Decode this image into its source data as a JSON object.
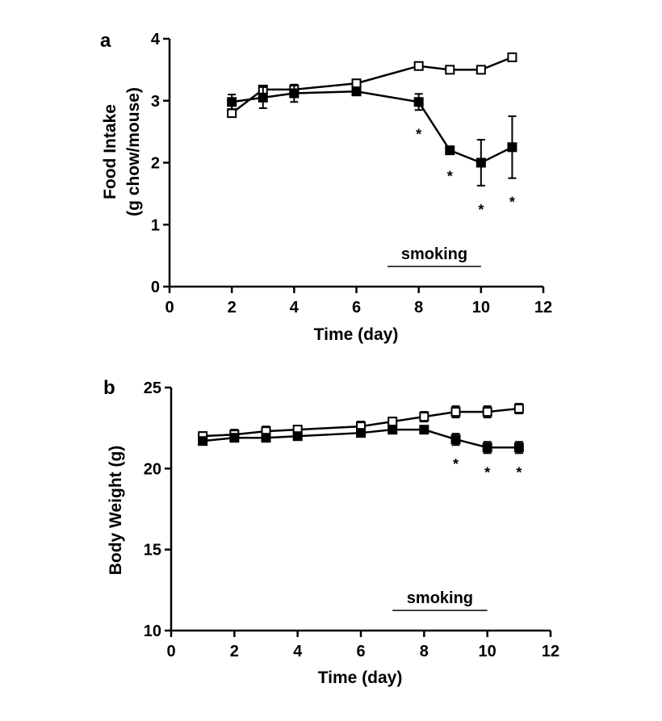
{
  "chart_data": [
    {
      "type": "line",
      "panel_label": "a",
      "xlabel": "Time (day)",
      "ylabel": "Food Intake",
      "ylabel_line2": "(g chow/mouse)",
      "xlim": [
        0,
        12
      ],
      "ylim": [
        0,
        4
      ],
      "xticks": [
        0,
        2,
        4,
        6,
        8,
        10,
        12
      ],
      "yticks": [
        0,
        1,
        2,
        3,
        4
      ],
      "grid": false,
      "series": [
        {
          "marker": "open-square",
          "x": [
            2,
            3,
            4,
            6,
            8,
            9,
            10,
            11
          ],
          "y": [
            2.8,
            3.18,
            3.18,
            3.28,
            3.56,
            3.5,
            3.5,
            3.7
          ],
          "err": [
            0.04,
            0.03,
            0.03,
            0.03,
            0.05,
            0.02,
            0.02,
            0.05
          ]
        },
        {
          "marker": "filled-square",
          "x": [
            2,
            3,
            4,
            6,
            8,
            9,
            10,
            11
          ],
          "y": [
            2.98,
            3.05,
            3.12,
            3.15,
            2.98,
            2.2,
            2.0,
            2.25
          ],
          "err": [
            0.12,
            0.17,
            0.14,
            0.03,
            0.13,
            0.03,
            0.37,
            0.5
          ]
        }
      ],
      "annotation": {
        "text": "smoking",
        "x_start": 7,
        "x_end": 10
      },
      "significance": {
        "marker": "*",
        "x": [
          8,
          9,
          10,
          11
        ]
      }
    },
    {
      "type": "line",
      "panel_label": "b",
      "xlabel": "Time (day)",
      "ylabel": "Body Weight (g)",
      "xlim": [
        0,
        12
      ],
      "ylim": [
        10,
        25
      ],
      "xticks": [
        0,
        2,
        4,
        6,
        8,
        10,
        12
      ],
      "yticks": [
        10,
        15,
        20,
        25
      ],
      "grid": false,
      "series": [
        {
          "marker": "open-square",
          "x": [
            1,
            2,
            3,
            4,
            6,
            7,
            8,
            9,
            10,
            11
          ],
          "y": [
            22.0,
            22.1,
            22.3,
            22.4,
            22.6,
            22.9,
            23.2,
            23.5,
            23.5,
            23.7
          ],
          "err": [
            0.25,
            0.3,
            0.3,
            0.25,
            0.3,
            0.25,
            0.3,
            0.35,
            0.35,
            0.3
          ]
        },
        {
          "marker": "filled-square",
          "x": [
            1,
            2,
            3,
            4,
            6,
            7,
            8,
            9,
            10,
            11
          ],
          "y": [
            21.7,
            21.9,
            21.9,
            22.0,
            22.2,
            22.4,
            22.4,
            21.8,
            21.3,
            21.3
          ],
          "err": [
            0.2,
            0.2,
            0.2,
            0.2,
            0.2,
            0.2,
            0.2,
            0.35,
            0.35,
            0.35
          ]
        }
      ],
      "annotation": {
        "text": "smoking",
        "x_start": 7,
        "x_end": 10
      },
      "significance": {
        "marker": "*",
        "x": [
          9,
          10,
          11
        ]
      }
    }
  ]
}
